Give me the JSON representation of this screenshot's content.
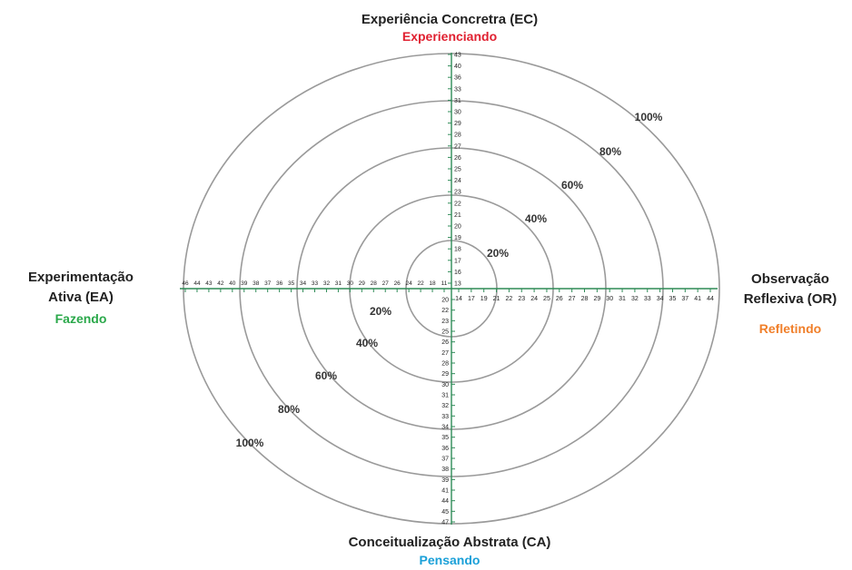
{
  "poles": {
    "top": {
      "title": "Experiência Concretra (EC)",
      "subtitle": "Experienciando",
      "subtitle_color": "#e02030"
    },
    "left": {
      "title_line1": "Experimentação",
      "title_line2": "Ativa (EA)",
      "subtitle": "Fazendo",
      "subtitle_color": "#2aa84a"
    },
    "right": {
      "title_line1": "Observação",
      "title_line2": "Reflexiva (OR)",
      "subtitle": "Refletindo",
      "subtitle_color": "#f07f2a"
    },
    "bottom": {
      "title": "Conceitualização Abstrata (CA)",
      "subtitle": "Pensando",
      "subtitle_color": "#1aa0d8"
    }
  },
  "rings": [
    "20%",
    "40%",
    "60%",
    "80%",
    "100%"
  ],
  "axis_color": "#2e8b57",
  "ring_color": "#9a9a9a",
  "scales": {
    "up": [
      "13",
      "16",
      "17",
      "18",
      "19",
      "20",
      "21",
      "22",
      "23",
      "24",
      "25",
      "26",
      "27",
      "28",
      "29",
      "30",
      "31",
      "33",
      "36",
      "40",
      "43"
    ],
    "right": [
      "14",
      "17",
      "19",
      "21",
      "22",
      "23",
      "24",
      "25",
      "26",
      "27",
      "28",
      "29",
      "30",
      "31",
      "32",
      "33",
      "34",
      "35",
      "37",
      "41",
      "44"
    ],
    "down": [
      "20",
      "22",
      "23",
      "25",
      "26",
      "27",
      "28",
      "29",
      "30",
      "31",
      "32",
      "33",
      "34",
      "35",
      "36",
      "37",
      "38",
      "39",
      "41",
      "44",
      "45",
      "47"
    ],
    "left": [
      "11",
      "18",
      "22",
      "24",
      "26",
      "27",
      "28",
      "29",
      "30",
      "31",
      "32",
      "33",
      "34",
      "35",
      "36",
      "37",
      "38",
      "39",
      "40",
      "42",
      "43",
      "44",
      "46"
    ]
  }
}
